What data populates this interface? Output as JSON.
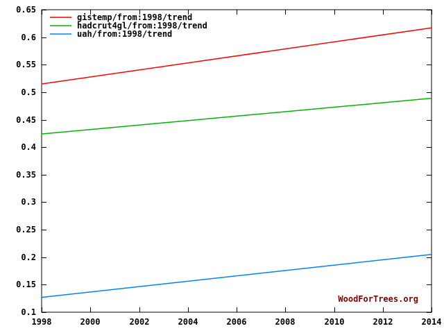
{
  "watermark": "WoodForTrees.org",
  "watermark_color": "#800000",
  "axis_color": "#000000",
  "background_color": "#ffffff",
  "chart_data": {
    "type": "line",
    "title": "",
    "xlabel": "",
    "ylabel": "",
    "grid": false,
    "legend_position": "top-left",
    "x_axis": {
      "min": 1998,
      "max": 2014,
      "tick_values": [
        1998,
        2000,
        2002,
        2004,
        2006,
        2008,
        2010,
        2012,
        2014
      ],
      "tick_labels": [
        "1998",
        "2000",
        "2002",
        "2004",
        "2006",
        "2008",
        "2010",
        "2012",
        "2014"
      ]
    },
    "y_axis": {
      "min": 0.1,
      "max": 0.65,
      "tick_values": [
        0.1,
        0.15,
        0.2,
        0.25,
        0.3,
        0.35,
        0.4,
        0.45,
        0.5,
        0.55,
        0.6,
        0.65
      ],
      "tick_labels": [
        "0.1",
        "0.15",
        "0.2",
        "0.25",
        "0.3",
        "0.35",
        "0.4",
        "0.45",
        "0.5",
        "0.55",
        "0.6",
        "0.65"
      ]
    },
    "series": [
      {
        "name": "gistemp/from:1998/trend",
        "color": "#ff0000",
        "x": [
          1998,
          2014
        ],
        "y": [
          0.515,
          0.617
        ]
      },
      {
        "name": "hadcrut4gl/from:1998/trend",
        "color": "#00b400",
        "x": [
          1998,
          2014
        ],
        "y": [
          0.424,
          0.489
        ]
      },
      {
        "name": "uah/from:1998/trend",
        "color": "#0080ff",
        "x": [
          1998,
          2014
        ],
        "y": [
          0.127,
          0.205
        ]
      }
    ]
  }
}
